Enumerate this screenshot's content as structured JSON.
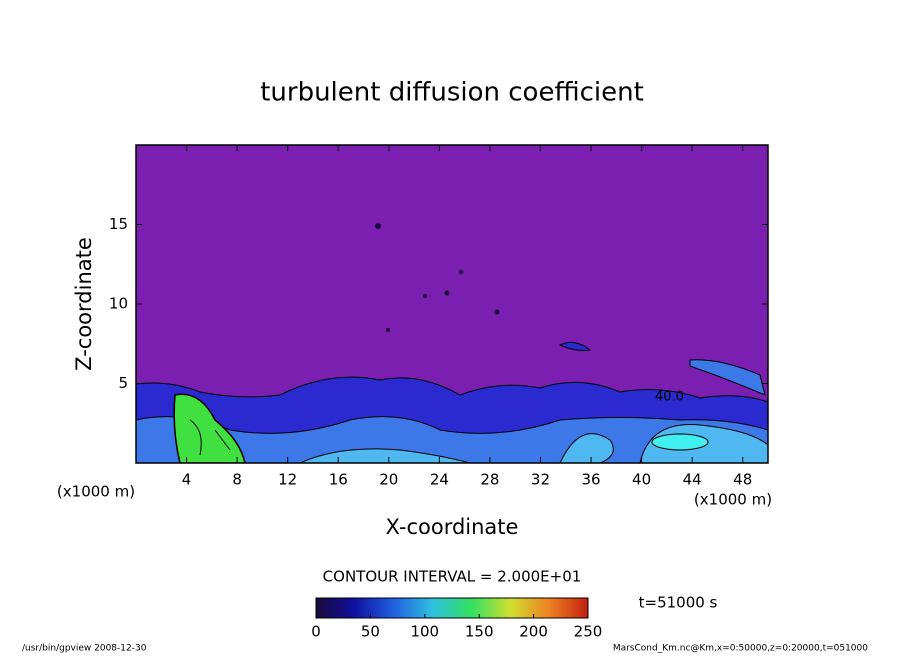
{
  "chart_data": {
    "type": "contour",
    "title": "turbulent diffusion coefficient",
    "xlabel": "X-coordinate",
    "ylabel": "Z-coordinate",
    "xunit": "(x1000 m)",
    "xlim": [
      0,
      50
    ],
    "xticks": [
      4,
      8,
      12,
      16,
      20,
      24,
      28,
      32,
      36,
      40,
      44,
      48
    ],
    "ylim": [
      0,
      20
    ],
    "yticks": [
      5,
      10,
      15
    ],
    "contour_label": "40.0",
    "contour_interval_text": "CONTOUR INTERVAL = 2.000E+01",
    "time_text": "t=51000 s",
    "clim": [
      0,
      250
    ],
    "cticks": [
      0,
      50,
      100,
      150,
      200,
      250
    ],
    "colormap": [
      "#1a0a3a",
      "#1010a0",
      "#2060e0",
      "#30c0e0",
      "#30e060",
      "#d0e030",
      "#f08020",
      "#c02010"
    ],
    "footer_left": "/usr/bin/gpview   2008-12-30",
    "footer_right": "MarsCond_Km.nc@Km,x=0:50000,z=0:20000,t=051000"
  }
}
